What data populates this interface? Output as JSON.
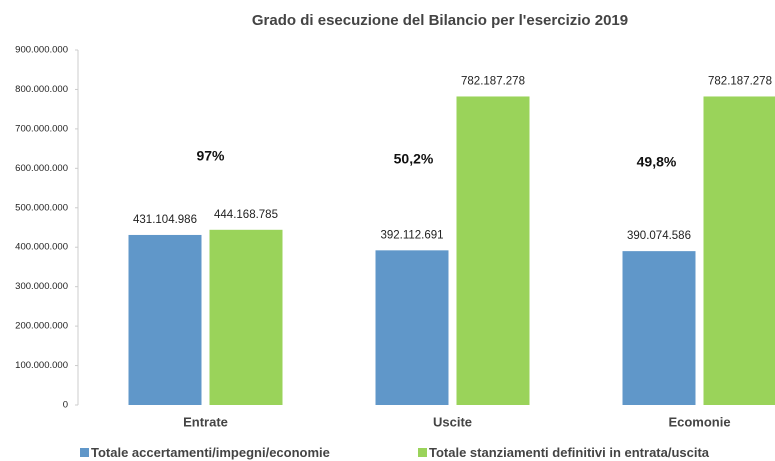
{
  "chart_data": {
    "type": "bar",
    "title": "Grado di esecuzione del Bilancio per l'esercizio 2019",
    "categories": [
      "Entrate",
      "Uscite",
      "Ecomonie"
    ],
    "series": [
      {
        "name": "Totale accertamenti/impegni/economie",
        "color": "#6097c9",
        "values": [
          431104986,
          392112691,
          390074586
        ],
        "value_labels": [
          "431.104.986",
          "392.112.691",
          "390.074.586"
        ]
      },
      {
        "name": "Totale stanziamenti definitivi in entrata/uscita",
        "color": "#9ad35a",
        "values": [
          444168785,
          782187278,
          782187278
        ],
        "value_labels": [
          "444.168.785",
          "782.187.278",
          "782.187.278"
        ]
      }
    ],
    "annotations": [
      "97%",
      "50,2%",
      "49,8%"
    ],
    "ylim": [
      0,
      900000000
    ],
    "yticks": [
      0,
      {
        "value": 100000000,
        "label": "100.000.000"
      },
      {
        "value": 200000000,
        "label": "200.000.000"
      },
      {
        "value": 300000000,
        "label": "300.000.000"
      },
      {
        "value": 400000000,
        "label": "400.000.000"
      },
      {
        "value": 500000000,
        "label": "500.000.000"
      },
      {
        "value": 600000000,
        "label": "600.000.000"
      },
      {
        "value": 700000000,
        "label": "700.000.000"
      },
      {
        "value": 800000000,
        "label": "800.000.000"
      },
      {
        "value": 900000000,
        "label": "900.000.000"
      }
    ],
    "grid": false,
    "legend": "bottom"
  }
}
